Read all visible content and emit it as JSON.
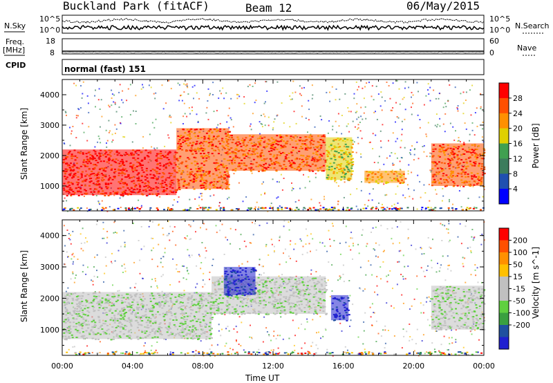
{
  "header": {
    "title": "Buckland Park (fitACF)",
    "beam": "Beam 12",
    "date": "06/May/2015"
  },
  "strip_labels": {
    "nsky": "N.Sky",
    "nsearch": "N.Search",
    "freq": "Freq.",
    "freq_unit": "[MHz]",
    "nave": "Nave",
    "cpid": "CPID",
    "cpid_value": "normal (fast) 151",
    "nsky_ticks": [
      "10^5",
      "10^0"
    ],
    "nsearch_ticks": [
      "10^5",
      "10^0"
    ],
    "freq_ticks": [
      "18",
      "8"
    ],
    "nave_ticks": [
      "60",
      "0"
    ]
  },
  "colors": {
    "power_scale": [
      "#0000ff",
      "#2050b0",
      "#3c7c5c",
      "#40a050",
      "#e0d000",
      "#ff9000",
      "#ff5000",
      "#ff0000"
    ],
    "velocity_scale": [
      "#2020d0",
      "#2050a0",
      "#3aa040",
      "#60d040",
      "#c0c0c0",
      "#c0c0c0",
      "#ffc000",
      "#ff9000",
      "#ff5000",
      "#ff0000"
    ]
  },
  "chart_data": [
    {
      "type": "heatmap",
      "panel": "power",
      "ylabel": "Slant Range [km]",
      "colorbar_label": "Power [dB]",
      "colorbar_ticks": [
        "4",
        "8",
        "12",
        "16",
        "20",
        "24",
        "28"
      ],
      "ylim": [
        180,
        4500
      ],
      "yticks": [
        "1000",
        "2000",
        "3000",
        "4000"
      ],
      "xlim": [
        "00:00",
        "24:00"
      ],
      "regions": [
        {
          "t0": 0.0,
          "t1": 6.5,
          "r0": 700,
          "r1": 2200,
          "level": 7
        },
        {
          "t0": 6.5,
          "t1": 9.5,
          "r0": 900,
          "r1": 2900,
          "level": 6
        },
        {
          "t0": 9.5,
          "t1": 15.0,
          "r0": 1500,
          "r1": 2700,
          "level": 6
        },
        {
          "t0": 15.0,
          "t1": 16.5,
          "r0": 1200,
          "r1": 2600,
          "level": 4
        },
        {
          "t0": 17.2,
          "t1": 19.5,
          "r0": 1100,
          "r1": 1500,
          "level": 5
        },
        {
          "t0": 21.0,
          "t1": 24.0,
          "r0": 1000,
          "r1": 2400,
          "level": 6
        }
      ]
    },
    {
      "type": "heatmap",
      "panel": "velocity",
      "ylabel": "Slant Range [km]",
      "xlabel": "Time UT",
      "colorbar_label": "Velocity [m s^-1]",
      "colorbar_ticks": [
        "200",
        "100",
        "50",
        "15",
        "-15",
        "-50",
        "-100",
        "-200"
      ],
      "ylim": [
        180,
        4500
      ],
      "yticks": [
        "1000",
        "2000",
        "3000",
        "4000"
      ],
      "xlim": [
        "00:00",
        "24:00"
      ],
      "xticks": [
        "00:00",
        "04:00",
        "08:00",
        "12:00",
        "16:00",
        "20:00",
        "00:00"
      ],
      "regions": [
        {
          "t0": 0.0,
          "t1": 8.5,
          "r0": 700,
          "r1": 2200,
          "level": 4
        },
        {
          "t0": 8.5,
          "t1": 15.0,
          "r0": 1500,
          "r1": 2700,
          "level": 4
        },
        {
          "t0": 9.2,
          "t1": 11.0,
          "r0": 2100,
          "r1": 3000,
          "level": 0
        },
        {
          "t0": 15.3,
          "t1": 16.3,
          "r0": 1300,
          "r1": 2100,
          "level": 0
        },
        {
          "t0": 21.0,
          "t1": 24.0,
          "r0": 1000,
          "r1": 2400,
          "level": 4
        }
      ]
    }
  ]
}
